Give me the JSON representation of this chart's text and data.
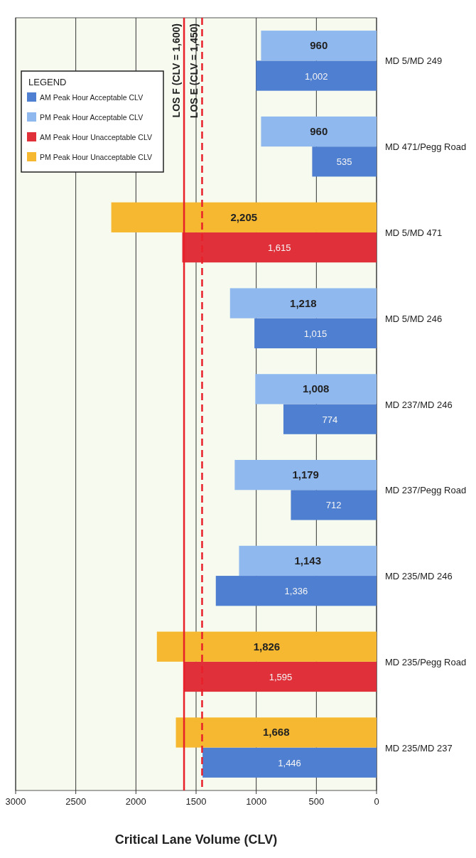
{
  "chart_data": {
    "type": "bar",
    "orientation": "horizontal",
    "xlabel": "Critical Lane Volume (CLV)",
    "legend_title": "LEGEND",
    "categories": [
      "MD 5/MD 249",
      "MD 471/Pegg Road",
      "MD 5/MD 471",
      "MD 5/MD 246",
      "MD 237/MD 246",
      "MD 237/Pegg Road",
      "MD 235/MD 246",
      "MD 235/Pegg Road",
      "MD 235/MD 237"
    ],
    "series": [
      {
        "name": "AM Peak Hour Acceptable CLV",
        "color": "#4f7fd0",
        "values": [
          1002,
          535,
          null,
          1015,
          774,
          712,
          1336,
          null,
          1446
        ],
        "value_labels": [
          "1,002",
          "535",
          null,
          "1,015",
          "774",
          "712",
          "1,336",
          null,
          "1,446"
        ]
      },
      {
        "name": "PM Peak Hour Acceptable CLV",
        "color": "#8fb8ee",
        "values": [
          960,
          960,
          null,
          1218,
          1008,
          1179,
          1143,
          null,
          null
        ],
        "value_labels": [
          "960",
          "960",
          null,
          "1,218",
          "1,008",
          "1,179",
          "1,143",
          null,
          null
        ]
      },
      {
        "name": "AM Peak Hour Unacceptable CLV",
        "color": "#e0303a",
        "values": [
          null,
          null,
          1615,
          null,
          null,
          null,
          null,
          1595,
          null
        ],
        "value_labels": [
          null,
          null,
          "1,615",
          null,
          null,
          null,
          null,
          "1,595",
          null
        ]
      },
      {
        "name": "PM Peak Hour Unacceptable CLV",
        "color": "#f5b830",
        "values": [
          null,
          null,
          2205,
          null,
          null,
          null,
          null,
          1826,
          1668
        ],
        "value_labels": [
          null,
          null,
          "2,205",
          null,
          null,
          null,
          null,
          "1,826",
          "1,668"
        ]
      }
    ],
    "xlim": [
      3000,
      0
    ],
    "xticks": [
      3000,
      2500,
      2000,
      1500,
      1000,
      500,
      0
    ],
    "ref_lines": [
      {
        "axis": "x",
        "value": 1600,
        "label": "LOS F (CLV = 1,600)",
        "color": "#e8202a",
        "line_style": "solid"
      },
      {
        "axis": "x",
        "value": 1450,
        "label": "LOS E (CLV = 1,450)",
        "color": "#e8202a",
        "line_style": "dashed"
      }
    ],
    "grid": "x",
    "legend": "top left"
  }
}
